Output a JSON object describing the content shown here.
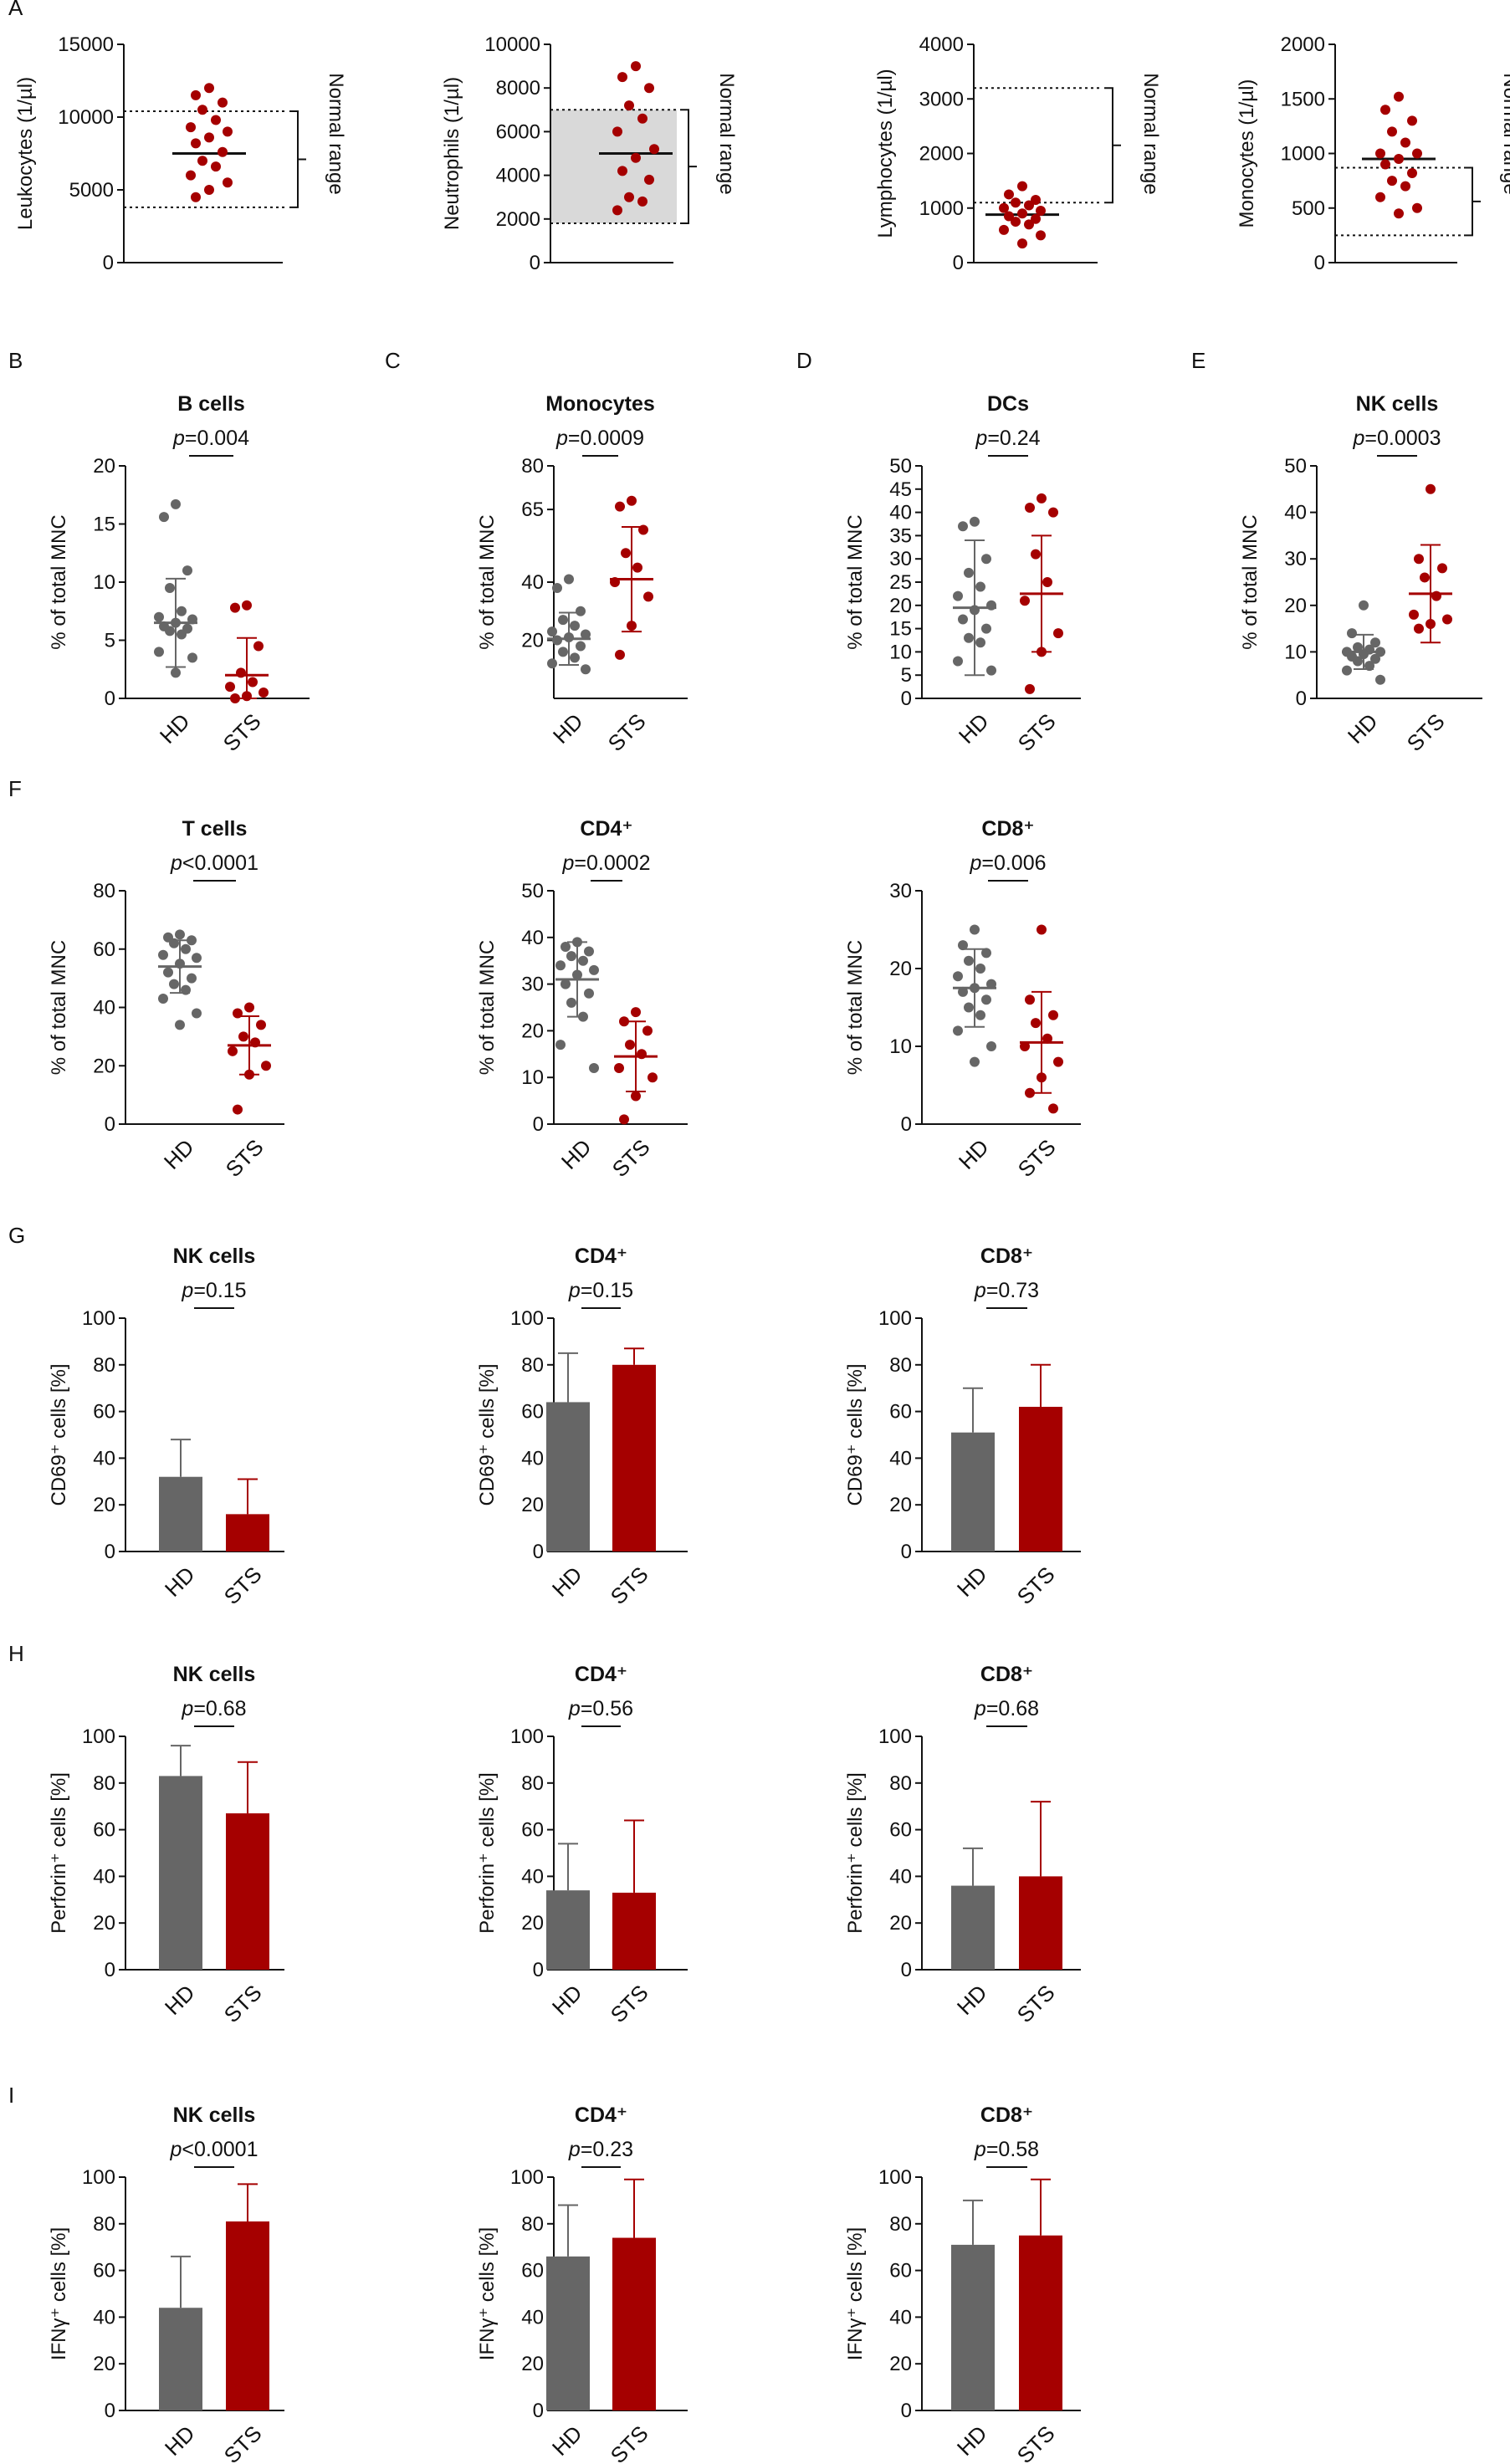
{
  "colors": {
    "hd": "#666666",
    "sts": "#a50000",
    "axis": "#111111",
    "shade": "#d9d9d9"
  },
  "panel_letters": [
    "A",
    "B",
    "C",
    "D",
    "E",
    "F",
    "G",
    "H",
    "I"
  ],
  "chart_data": [
    {
      "id": "a1",
      "type": "scatter",
      "ylabel": "Leukocytes (1/µl)",
      "ylim": [
        0,
        15000
      ],
      "yticks": [
        0,
        5000,
        10000,
        15000
      ],
      "range_label": "Normal range",
      "normal_range": [
        3800,
        10400
      ],
      "shaded": false,
      "mean": 7500,
      "points": [
        12000,
        11500,
        11000,
        10500,
        9800,
        9300,
        9000,
        8600,
        8200,
        7600,
        7000,
        6600,
        6000,
        5500,
        5000,
        4500
      ]
    },
    {
      "id": "a2",
      "type": "scatter",
      "ylabel": "Neutrophils (1/µl)",
      "ylim": [
        0,
        10000
      ],
      "yticks": [
        0,
        2000,
        4000,
        6000,
        8000,
        10000
      ],
      "range_label": "Normal range",
      "normal_range": [
        1800,
        7000
      ],
      "shaded": true,
      "mean": 5000,
      "points": [
        9000,
        8500,
        8000,
        7200,
        6600,
        6000,
        5200,
        4800,
        4200,
        3800,
        3000,
        2800,
        2400
      ]
    },
    {
      "id": "a3",
      "type": "scatter",
      "ylabel": "Lymphocytes (1/µl)",
      "ylim": [
        0,
        4000
      ],
      "yticks": [
        0,
        1000,
        2000,
        3000,
        4000
      ],
      "range_label": "Normal range",
      "normal_range": [
        1100,
        3200
      ],
      "shaded": false,
      "mean": 880,
      "points": [
        1400,
        1250,
        1150,
        1100,
        1050,
        1000,
        950,
        900,
        850,
        800,
        750,
        700,
        600,
        500,
        350
      ]
    },
    {
      "id": "a4",
      "type": "scatter",
      "ylabel": "Monocytes (1/µl)",
      "ylim": [
        0,
        2000
      ],
      "yticks": [
        0,
        500,
        1000,
        1500,
        2000
      ],
      "range_label": "Normal range",
      "normal_range": [
        250,
        870
      ],
      "shaded": false,
      "mean": 950,
      "points": [
        1520,
        1400,
        1300,
        1200,
        1100,
        1000,
        1000,
        950,
        900,
        820,
        750,
        700,
        600,
        500,
        450
      ]
    },
    {
      "id": "b",
      "type": "scatter",
      "title": "B cells",
      "pvalue": "=0.004",
      "ylabel": "% of total MNC",
      "ylim": [
        0,
        20
      ],
      "yticks": [
        0,
        5,
        10,
        15,
        20
      ],
      "categories": [
        "HD",
        "STS"
      ],
      "series": [
        {
          "name": "HD",
          "mean": 6.5,
          "sd": 3.8,
          "values": [
            16.7,
            15.6,
            11.0,
            9.5,
            7.5,
            7.0,
            6.8,
            6.5,
            6.2,
            6.0,
            5.8,
            5.5,
            4.0,
            3.5,
            2.2
          ]
        },
        {
          "name": "STS",
          "mean": 2.0,
          "sd": 3.2,
          "values": [
            8.0,
            7.8,
            4.5,
            2.2,
            1.4,
            1.0,
            0.5,
            0.2,
            0.0
          ]
        }
      ]
    },
    {
      "id": "c",
      "type": "scatter",
      "title": "Monocytes",
      "pvalue": "=0.0009",
      "ylabel": "% of total MNC",
      "ylim": [
        0,
        80
      ],
      "yticks": [
        20,
        40,
        65,
        80
      ],
      "categories": [
        "HD",
        "STS"
      ],
      "series": [
        {
          "name": "HD",
          "mean": 20.5,
          "sd": 9.0,
          "values": [
            41,
            38,
            30,
            27,
            25,
            23,
            22,
            21,
            20,
            18,
            16,
            14,
            12,
            10
          ]
        },
        {
          "name": "STS",
          "mean": 41,
          "sd": 18,
          "values": [
            68,
            66,
            58,
            50,
            45,
            40,
            35,
            25,
            15
          ]
        }
      ]
    },
    {
      "id": "d",
      "type": "scatter",
      "title": "DCs",
      "pvalue": "=0.24",
      "ylabel": "% of total MNC",
      "ylim": [
        0,
        50
      ],
      "yticks": [
        0,
        5,
        10,
        15,
        20,
        25,
        30,
        35,
        40,
        45,
        50
      ],
      "categories": [
        "HD",
        "STS"
      ],
      "series": [
        {
          "name": "HD",
          "mean": 19.5,
          "sd": 14.5,
          "values": [
            38,
            37,
            30,
            27,
            24,
            22,
            20,
            19,
            17,
            15,
            13,
            12,
            8,
            6
          ]
        },
        {
          "name": "STS",
          "mean": 22.5,
          "sd": 12.5,
          "values": [
            43,
            41,
            40,
            31,
            25,
            21,
            14,
            10,
            2
          ]
        }
      ]
    },
    {
      "id": "e",
      "type": "scatter",
      "title": "NK cells",
      "pvalue": "=0.0003",
      "ylabel": "% of total MNC",
      "ylim": [
        0,
        50
      ],
      "yticks": [
        0,
        10,
        20,
        30,
        40,
        50
      ],
      "categories": [
        "HD",
        "STS"
      ],
      "series": [
        {
          "name": "HD",
          "mean": 10,
          "sd": 3.7,
          "values": [
            20,
            14,
            12,
            11,
            10.5,
            10,
            10,
            9.5,
            9,
            8.5,
            8,
            7,
            6,
            4
          ]
        },
        {
          "name": "STS",
          "mean": 22.5,
          "sd": 10.5,
          "values": [
            45,
            30,
            28,
            26,
            22,
            18,
            17,
            16,
            15
          ]
        }
      ]
    },
    {
      "id": "f1",
      "type": "scatter",
      "title": "T cells",
      "pvalue": "<0.0001",
      "ylabel": "% of total MNC",
      "ylim": [
        0,
        80
      ],
      "yticks": [
        0,
        20,
        40,
        60,
        80
      ],
      "categories": [
        "HD",
        "STS"
      ],
      "series": [
        {
          "name": "HD",
          "mean": 54,
          "sd": 9,
          "values": [
            65,
            64,
            63,
            62,
            60,
            58,
            57,
            55,
            52,
            50,
            48,
            46,
            43,
            38,
            34
          ]
        },
        {
          "name": "STS",
          "mean": 27,
          "sd": 10,
          "values": [
            40,
            38,
            34,
            30,
            28,
            25,
            20,
            17,
            5
          ]
        }
      ]
    },
    {
      "id": "f2",
      "type": "scatter",
      "title": "CD4⁺",
      "pvalue": "=0.0002",
      "ylabel": "% of total MNC",
      "ylim": [
        0,
        50
      ],
      "yticks": [
        0,
        10,
        20,
        30,
        40,
        50
      ],
      "categories": [
        "HD",
        "STS"
      ],
      "series": [
        {
          "name": "HD",
          "mean": 31,
          "sd": 8,
          "values": [
            39,
            38,
            37,
            36,
            35,
            34,
            33,
            32,
            30,
            28,
            26,
            23,
            17,
            12
          ]
        },
        {
          "name": "STS",
          "mean": 14.5,
          "sd": 7.5,
          "values": [
            24,
            22,
            20,
            17,
            15,
            12,
            10,
            6,
            1
          ]
        }
      ]
    },
    {
      "id": "f3",
      "type": "scatter",
      "title": "CD8⁺",
      "pvalue": "=0.006",
      "ylabel": "% of total MNC",
      "ylim": [
        0,
        30
      ],
      "yticks": [
        0,
        10,
        20,
        30
      ],
      "categories": [
        "HD",
        "STS"
      ],
      "series": [
        {
          "name": "HD",
          "mean": 17.5,
          "sd": 5,
          "values": [
            25,
            23,
            22,
            21,
            20,
            19,
            18,
            17.5,
            17,
            16,
            15,
            14,
            12,
            10,
            8
          ]
        },
        {
          "name": "STS",
          "mean": 10.5,
          "sd": 6.5,
          "values": [
            25,
            16,
            14,
            13,
            11,
            10,
            8,
            6,
            4,
            2
          ]
        }
      ]
    },
    {
      "id": "g1",
      "type": "bar",
      "title": "NK cells",
      "pvalue": "=0.15",
      "ylabel": "CD69⁺ cells [%]",
      "ylim": [
        0,
        100
      ],
      "yticks": [
        0,
        20,
        40,
        60,
        80,
        100
      ],
      "categories": [
        "HD",
        "STS"
      ],
      "values": [
        32,
        16
      ],
      "errors": [
        16,
        15
      ]
    },
    {
      "id": "g2",
      "type": "bar",
      "title": "CD4⁺",
      "pvalue": "=0.15",
      "ylabel": "CD69⁺ cells [%]",
      "ylim": [
        0,
        100
      ],
      "yticks": [
        0,
        20,
        40,
        60,
        80,
        100
      ],
      "categories": [
        "HD",
        "STS"
      ],
      "values": [
        64,
        80
      ],
      "errors": [
        21,
        7
      ]
    },
    {
      "id": "g3",
      "type": "bar",
      "title": "CD8⁺",
      "pvalue": "=0.73",
      "ylabel": "CD69⁺ cells [%]",
      "ylim": [
        0,
        100
      ],
      "yticks": [
        0,
        20,
        40,
        60,
        80,
        100
      ],
      "categories": [
        "HD",
        "STS"
      ],
      "values": [
        51,
        62
      ],
      "errors": [
        19,
        18
      ]
    },
    {
      "id": "h1",
      "type": "bar",
      "title": "NK cells",
      "pvalue": "=0.68",
      "ylabel": "Perforin⁺ cells [%]",
      "ylim": [
        0,
        100
      ],
      "yticks": [
        0,
        20,
        40,
        60,
        80,
        100
      ],
      "categories": [
        "HD",
        "STS"
      ],
      "values": [
        83,
        67
      ],
      "errors": [
        13,
        22
      ]
    },
    {
      "id": "h2",
      "type": "bar",
      "title": "CD4⁺",
      "pvalue": "=0.56",
      "ylabel": "Perforin⁺ cells [%]",
      "ylim": [
        0,
        100
      ],
      "yticks": [
        0,
        20,
        40,
        60,
        80,
        100
      ],
      "categories": [
        "HD",
        "STS"
      ],
      "values": [
        34,
        33
      ],
      "errors": [
        20,
        31
      ]
    },
    {
      "id": "h3",
      "type": "bar",
      "title": "CD8⁺",
      "pvalue": "=0.68",
      "ylabel": "Perforin⁺ cells [%]",
      "ylim": [
        0,
        100
      ],
      "yticks": [
        0,
        20,
        40,
        60,
        80,
        100
      ],
      "categories": [
        "HD",
        "STS"
      ],
      "values": [
        36,
        40
      ],
      "errors": [
        16,
        32
      ]
    },
    {
      "id": "i1",
      "type": "bar",
      "title": "NK cells",
      "pvalue": "<0.0001",
      "ylabel": "IFNγ⁺ cells [%]",
      "ylim": [
        0,
        100
      ],
      "yticks": [
        0,
        20,
        40,
        60,
        80,
        100
      ],
      "categories": [
        "HD",
        "STS"
      ],
      "values": [
        44,
        81
      ],
      "errors": [
        22,
        16
      ]
    },
    {
      "id": "i2",
      "type": "bar",
      "title": "CD4⁺",
      "pvalue": "=0.23",
      "ylabel": "IFNγ⁺ cells [%]",
      "ylim": [
        0,
        100
      ],
      "yticks": [
        0,
        20,
        40,
        60,
        80,
        100
      ],
      "categories": [
        "HD",
        "STS"
      ],
      "values": [
        66,
        74
      ],
      "errors": [
        22,
        25
      ]
    },
    {
      "id": "i3",
      "type": "bar",
      "title": "CD8⁺",
      "pvalue": "=0.58",
      "ylabel": "IFNγ⁺ cells [%]",
      "ylim": [
        0,
        100
      ],
      "yticks": [
        0,
        20,
        40,
        60,
        80,
        100
      ],
      "categories": [
        "HD",
        "STS"
      ],
      "values": [
        71,
        75
      ],
      "errors": [
        19,
        24
      ]
    }
  ]
}
